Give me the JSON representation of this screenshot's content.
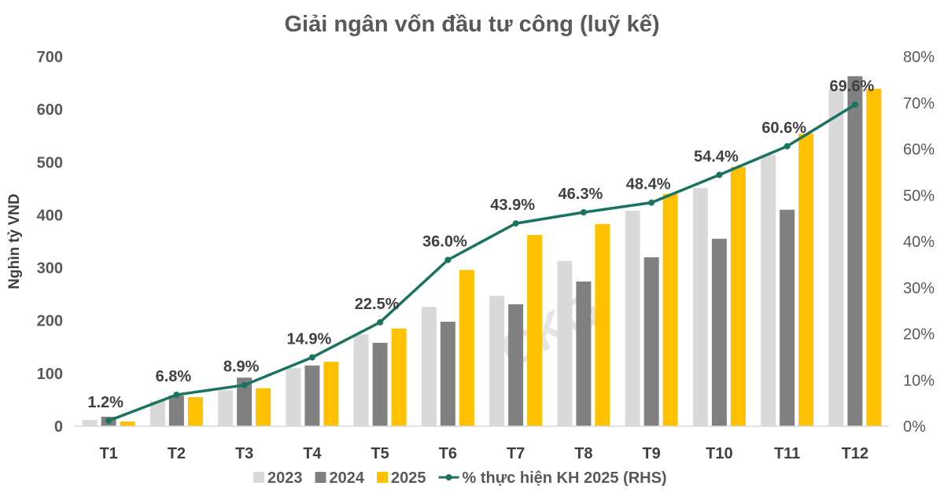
{
  "chart_data": {
    "type": "bar+line",
    "title": "Giải ngân vốn đầu tư công (luỹ kế)",
    "ylabel": "Nghìn tỷ VND",
    "ylim": [
      0,
      700
    ],
    "y_ticks": [
      "0",
      "100",
      "200",
      "300",
      "400",
      "500",
      "600",
      "700"
    ],
    "y2lim": [
      0,
      80
    ],
    "y2_ticks": [
      "0%",
      "10%",
      "20%",
      "30%",
      "40%",
      "50%",
      "60%",
      "70%",
      "80%"
    ],
    "categories": [
      "T1",
      "T2",
      "T3",
      "T4",
      "T5",
      "T6",
      "T7",
      "T8",
      "T9",
      "T10",
      "T11",
      "T12"
    ],
    "series": [
      {
        "name": "2023",
        "type": "bar",
        "color": "#d9d9d9",
        "values": [
          12,
          48,
          68,
          110,
          174,
          226,
          247,
          313,
          408,
          451,
          514,
          639
        ]
      },
      {
        "name": "2024",
        "type": "bar",
        "color": "#808080",
        "values": [
          18,
          58,
          92,
          115,
          158,
          198,
          231,
          274,
          320,
          355,
          410,
          663
        ]
      },
      {
        "name": "2025",
        "type": "bar",
        "color": "#ffc000",
        "values": [
          9,
          55,
          72,
          122,
          185,
          296,
          362,
          383,
          440,
          491,
          554,
          639
        ]
      },
      {
        "name": "% thực hiện KH 2025 (RHS)",
        "type": "line",
        "axis": "right",
        "color": "#1a7360",
        "values": [
          1.2,
          6.8,
          8.9,
          14.9,
          22.5,
          36.0,
          43.9,
          46.3,
          48.4,
          54.4,
          60.6,
          69.6
        ],
        "labels": [
          "1.2%",
          "6.8%",
          "8.9%",
          "14.9%",
          "22.5%",
          "36.0%",
          "43.9%",
          "46.3%",
          "48.4%",
          "54.4%",
          "60.6%",
          "69.6%"
        ]
      }
    ],
    "legend": "bottom",
    "grid": false,
    "watermark": "CKG"
  }
}
